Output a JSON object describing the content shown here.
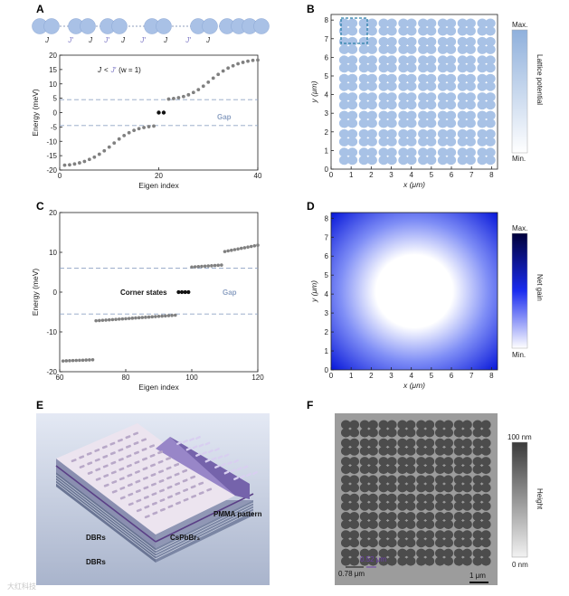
{
  "panels": {
    "A": {
      "label": "A",
      "coupling_labels": [
        "J",
        "J′",
        "J",
        "J′",
        "J",
        "J′",
        "J",
        "J′",
        "J"
      ],
      "annotation_j": "J",
      "annotation_lt": "<",
      "annotation_jp": "J′",
      "annotation_w": "(w = 1)",
      "gap_label": "Gap"
    },
    "B": {
      "label": "B",
      "colorbar_max": "Max.",
      "colorbar_min": "Min.",
      "colorbar_title": "Lattice potential"
    },
    "C": {
      "label": "C",
      "corner_label": "Corner states",
      "gap_label": "Gap"
    },
    "D": {
      "label": "D",
      "colorbar_max": "Max.",
      "colorbar_min": "Min.",
      "colorbar_title": "Net gain"
    },
    "E": {
      "label": "E",
      "layer_top": "DBRs",
      "layer_mid": "CsPbBr₃",
      "layer_bottom": "DBRs",
      "pattern": "PMMA pattern"
    },
    "F": {
      "label": "F",
      "scale_top": "100 nm",
      "scale_bottom": "0 nm",
      "scale_title": "Height",
      "dim1": "0.52 μm",
      "dim2": "0.78 μm",
      "scalebar": "1 μm"
    }
  },
  "watermark": "大红科技",
  "chart_data": [
    {
      "id": "A",
      "type": "scatter",
      "title": "",
      "xlabel": "Eigen index",
      "ylabel": "Energy (meV)",
      "xlim": [
        0,
        40
      ],
      "ylim": [
        -20,
        20
      ],
      "xticks": [
        0,
        20,
        40
      ],
      "yticks": [
        -20,
        -15,
        -10,
        -5,
        0,
        5,
        10,
        15,
        20
      ],
      "gap_lines": [
        4.5,
        -4.5
      ],
      "series": [
        {
          "name": "bulk",
          "color": "#808080",
          "x": [
            1,
            2,
            3,
            4,
            5,
            6,
            7,
            8,
            9,
            10,
            11,
            12,
            13,
            14,
            15,
            16,
            17,
            18,
            19,
            22,
            23,
            24,
            25,
            26,
            27,
            28,
            29,
            30,
            31,
            32,
            33,
            34,
            35,
            36,
            37,
            38,
            39,
            40
          ],
          "y": [
            -18.3,
            -18.2,
            -17.9,
            -17.5,
            -17.0,
            -16.3,
            -15.5,
            -14.5,
            -13.3,
            -12.0,
            -10.6,
            -9.2,
            -8.0,
            -7.0,
            -6.2,
            -5.6,
            -5.2,
            -4.9,
            -4.7,
            4.7,
            4.9,
            5.2,
            5.6,
            6.2,
            7.0,
            8.0,
            9.2,
            10.6,
            12.0,
            13.3,
            14.5,
            15.5,
            16.3,
            17.0,
            17.5,
            17.9,
            18.2,
            18.3
          ]
        },
        {
          "name": "edge",
          "color": "#111111",
          "x": [
            20,
            21
          ],
          "y": [
            0,
            0
          ]
        }
      ]
    },
    {
      "id": "B",
      "type": "heatmap",
      "title": "",
      "xlabel": "x (μm)",
      "ylabel": "y (μm)",
      "xlim": [
        0,
        8.3
      ],
      "ylim": [
        0,
        8.3
      ],
      "xticks": [
        0,
        1,
        2,
        3,
        4,
        5,
        6,
        7,
        8
      ],
      "yticks": [
        0,
        1,
        2,
        3,
        4,
        5,
        6,
        7,
        8
      ],
      "lattice": "8x8 plaquettes of 2x2 sites",
      "unit_cell_box": "dashed"
    },
    {
      "id": "C",
      "type": "scatter",
      "title": "",
      "xlabel": "Eigen index",
      "ylabel": "Energy (meV)",
      "xlim": [
        60,
        120
      ],
      "ylim": [
        -20,
        20
      ],
      "xticks": [
        60,
        80,
        100,
        120
      ],
      "yticks": [
        -20,
        -10,
        0,
        10,
        20
      ],
      "gap_lines": [
        6.0,
        -5.5
      ],
      "series": [
        {
          "name": "low band",
          "color": "#808080",
          "x_range": [
            61,
            70
          ],
          "y_range": [
            -17.3,
            -17.0
          ]
        },
        {
          "name": "lower bulk",
          "color": "#808080",
          "x_range": [
            71,
            95
          ],
          "y_range": [
            -7.2,
            -5.8
          ]
        },
        {
          "name": "corner",
          "color": "#111111",
          "x": [
            96,
            97,
            98,
            99
          ],
          "y": [
            0,
            0,
            0,
            0
          ]
        },
        {
          "name": "upper bulk",
          "color": "#808080",
          "x_range": [
            100,
            109
          ],
          "y_range": [
            6.3,
            6.8
          ]
        },
        {
          "name": "high band",
          "color": "#808080",
          "x_range": [
            110,
            120
          ],
          "y_range": [
            10.2,
            11.8
          ]
        }
      ]
    },
    {
      "id": "D",
      "type": "heatmap",
      "title": "",
      "xlabel": "x (μm)",
      "ylabel": "y (μm)",
      "xlim": [
        0,
        8.3
      ],
      "ylim": [
        0,
        8.3
      ],
      "xticks": [
        0,
        1,
        2,
        3,
        4,
        5,
        6,
        7,
        8
      ],
      "yticks": [
        0,
        1,
        2,
        3,
        4,
        5,
        6,
        7,
        8
      ],
      "profile": "minimum at center (4.15, 4.15), increasing radially"
    }
  ]
}
